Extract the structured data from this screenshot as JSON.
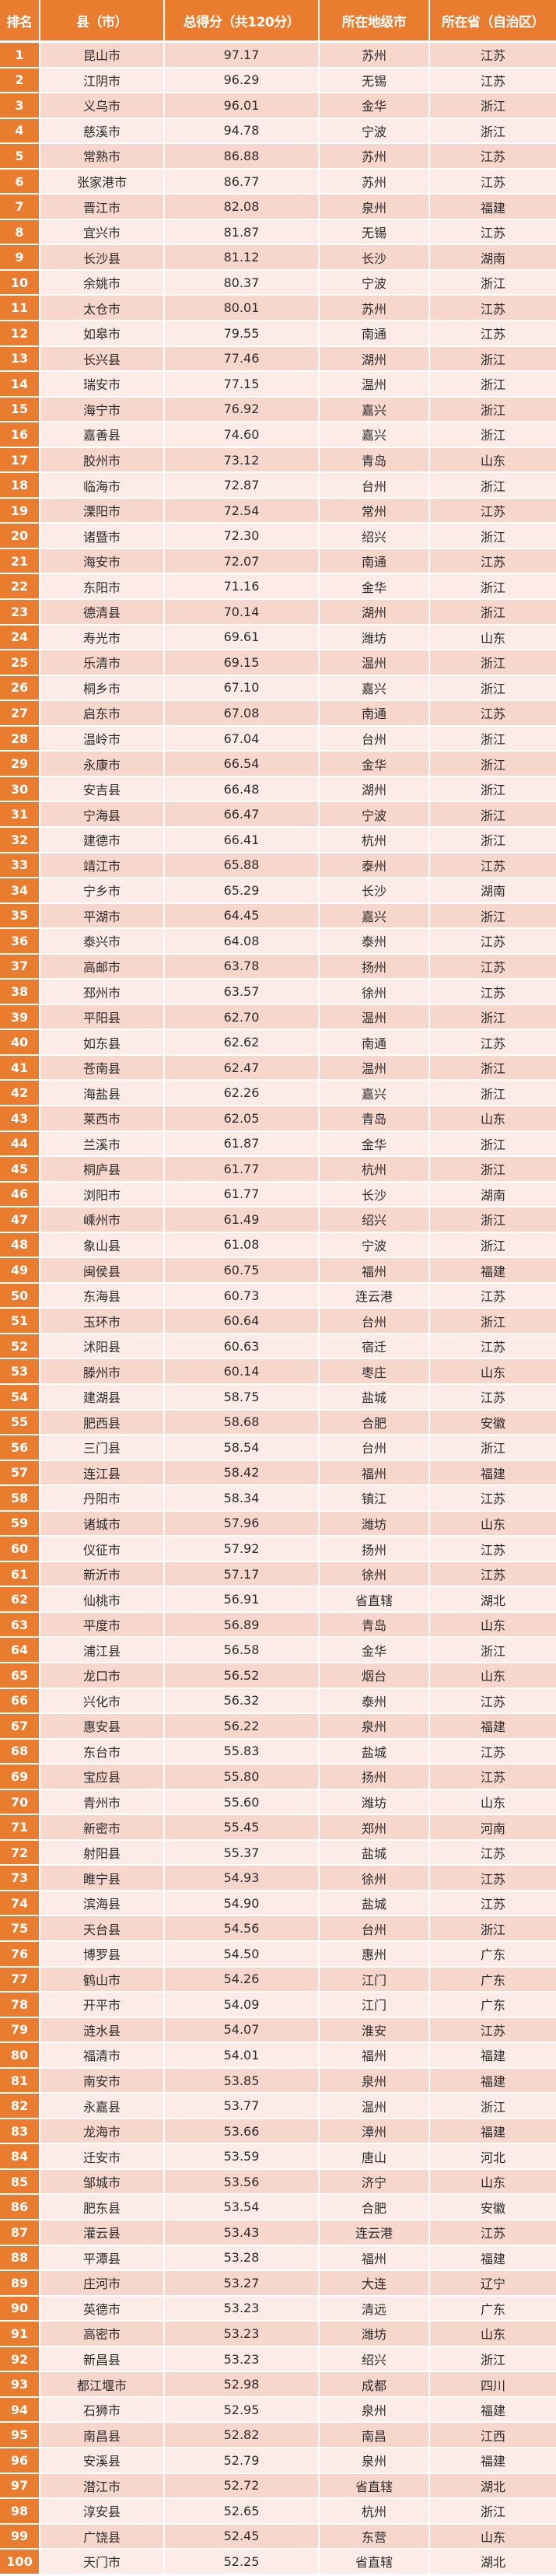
{
  "colors": {
    "header": "#ea7c2f",
    "rank_cell": "#ea7c2f",
    "row_odd": "#f7d6cc",
    "row_even": "#fcebe6"
  },
  "header": [
    "排名",
    "县（市）",
    "总得分（共120分）",
    "所在地级市",
    "所在省（自治区）"
  ],
  "rows": [
    [
      "1",
      "昆山市",
      "97.17",
      "苏州",
      "江苏"
    ],
    [
      "2",
      "江阴市",
      "96.29",
      "无锡",
      "江苏"
    ],
    [
      "3",
      "义乌市",
      "96.01",
      "金华",
      "浙江"
    ],
    [
      "4",
      "慈溪市",
      "94.78",
      "宁波",
      "浙江"
    ],
    [
      "5",
      "常熟市",
      "86.88",
      "苏州",
      "江苏"
    ],
    [
      "6",
      "张家港市",
      "86.77",
      "苏州",
      "江苏"
    ],
    [
      "7",
      "晋江市",
      "82.08",
      "泉州",
      "福建"
    ],
    [
      "8",
      "宜兴市",
      "81.87",
      "无锡",
      "江苏"
    ],
    [
      "9",
      "长沙县",
      "81.12",
      "长沙",
      "湖南"
    ],
    [
      "10",
      "余姚市",
      "80.37",
      "宁波",
      "浙江"
    ],
    [
      "11",
      "太仓市",
      "80.01",
      "苏州",
      "江苏"
    ],
    [
      "12",
      "如皋市",
      "79.55",
      "南通",
      "江苏"
    ],
    [
      "13",
      "长兴县",
      "77.46",
      "湖州",
      "浙江"
    ],
    [
      "14",
      "瑞安市",
      "77.15",
      "温州",
      "浙江"
    ],
    [
      "15",
      "海宁市",
      "76.92",
      "嘉兴",
      "浙江"
    ],
    [
      "16",
      "嘉善县",
      "74.60",
      "嘉兴",
      "浙江"
    ],
    [
      "17",
      "胶州市",
      "73.12",
      "青岛",
      "山东"
    ],
    [
      "18",
      "临海市",
      "72.87",
      "台州",
      "浙江"
    ],
    [
      "19",
      "溧阳市",
      "72.54",
      "常州",
      "江苏"
    ],
    [
      "20",
      "诸暨市",
      "72.30",
      "绍兴",
      "浙江"
    ],
    [
      "21",
      "海安市",
      "72.07",
      "南通",
      "江苏"
    ],
    [
      "22",
      "东阳市",
      "71.16",
      "金华",
      "浙江"
    ],
    [
      "23",
      "德清县",
      "70.14",
      "湖州",
      "浙江"
    ],
    [
      "24",
      "寿光市",
      "69.61",
      "潍坊",
      "山东"
    ],
    [
      "25",
      "乐清市",
      "69.15",
      "温州",
      "浙江"
    ],
    [
      "26",
      "桐乡市",
      "67.10",
      "嘉兴",
      "浙江"
    ],
    [
      "27",
      "启东市",
      "67.08",
      "南通",
      "江苏"
    ],
    [
      "28",
      "温岭市",
      "67.04",
      "台州",
      "浙江"
    ],
    [
      "29",
      "永康市",
      "66.54",
      "金华",
      "浙江"
    ],
    [
      "30",
      "安吉县",
      "66.48",
      "湖州",
      "浙江"
    ],
    [
      "31",
      "宁海县",
      "66.47",
      "宁波",
      "浙江"
    ],
    [
      "32",
      "建德市",
      "66.41",
      "杭州",
      "浙江"
    ],
    [
      "33",
      "靖江市",
      "65.88",
      "泰州",
      "江苏"
    ],
    [
      "34",
      "宁乡市",
      "65.29",
      "长沙",
      "湖南"
    ],
    [
      "35",
      "平湖市",
      "64.45",
      "嘉兴",
      "浙江"
    ],
    [
      "36",
      "泰兴市",
      "64.08",
      "泰州",
      "江苏"
    ],
    [
      "37",
      "高邮市",
      "63.78",
      "扬州",
      "江苏"
    ],
    [
      "38",
      "邳州市",
      "63.57",
      "徐州",
      "江苏"
    ],
    [
      "39",
      "平阳县",
      "62.70",
      "温州",
      "浙江"
    ],
    [
      "40",
      "如东县",
      "62.62",
      "南通",
      "江苏"
    ],
    [
      "41",
      "苍南县",
      "62.47",
      "温州",
      "浙江"
    ],
    [
      "42",
      "海盐县",
      "62.26",
      "嘉兴",
      "浙江"
    ],
    [
      "43",
      "莱西市",
      "62.05",
      "青岛",
      "山东"
    ],
    [
      "44",
      "兰溪市",
      "61.87",
      "金华",
      "浙江"
    ],
    [
      "45",
      "桐庐县",
      "61.77",
      "杭州",
      "浙江"
    ],
    [
      "46",
      "浏阳市",
      "61.77",
      "长沙",
      "湖南"
    ],
    [
      "47",
      "嵊州市",
      "61.49",
      "绍兴",
      "浙江"
    ],
    [
      "48",
      "象山县",
      "61.08",
      "宁波",
      "浙江"
    ],
    [
      "49",
      "闽侯县",
      "60.75",
      "福州",
      "福建"
    ],
    [
      "50",
      "东海县",
      "60.73",
      "连云港",
      "江苏"
    ],
    [
      "51",
      "玉环市",
      "60.64",
      "台州",
      "浙江"
    ],
    [
      "52",
      "沭阳县",
      "60.63",
      "宿迁",
      "江苏"
    ],
    [
      "53",
      "滕州市",
      "60.14",
      "枣庄",
      "山东"
    ],
    [
      "54",
      "建湖县",
      "58.75",
      "盐城",
      "江苏"
    ],
    [
      "55",
      "肥西县",
      "58.68",
      "合肥",
      "安徽"
    ],
    [
      "56",
      "三门县",
      "58.54",
      "台州",
      "浙江"
    ],
    [
      "57",
      "连江县",
      "58.42",
      "福州",
      "福建"
    ],
    [
      "58",
      "丹阳市",
      "58.34",
      "镇江",
      "江苏"
    ],
    [
      "59",
      "诸城市",
      "57.96",
      "潍坊",
      "山东"
    ],
    [
      "60",
      "仪征市",
      "57.92",
      "扬州",
      "江苏"
    ],
    [
      "61",
      "新沂市",
      "57.17",
      "徐州",
      "江苏"
    ],
    [
      "62",
      "仙桃市",
      "56.91",
      "省直辖",
      "湖北"
    ],
    [
      "63",
      "平度市",
      "56.89",
      "青岛",
      "山东"
    ],
    [
      "64",
      "浦江县",
      "56.58",
      "金华",
      "浙江"
    ],
    [
      "65",
      "龙口市",
      "56.52",
      "烟台",
      "山东"
    ],
    [
      "66",
      "兴化市",
      "56.32",
      "泰州",
      "江苏"
    ],
    [
      "67",
      "惠安县",
      "56.22",
      "泉州",
      "福建"
    ],
    [
      "68",
      "东台市",
      "55.83",
      "盐城",
      "江苏"
    ],
    [
      "69",
      "宝应县",
      "55.80",
      "扬州",
      "江苏"
    ],
    [
      "70",
      "青州市",
      "55.60",
      "潍坊",
      "山东"
    ],
    [
      "71",
      "新密市",
      "55.45",
      "郑州",
      "河南"
    ],
    [
      "72",
      "射阳县",
      "55.37",
      "盐城",
      "江苏"
    ],
    [
      "73",
      "睢宁县",
      "54.93",
      "徐州",
      "江苏"
    ],
    [
      "74",
      "滨海县",
      "54.90",
      "盐城",
      "江苏"
    ],
    [
      "75",
      "天台县",
      "54.56",
      "台州",
      "浙江"
    ],
    [
      "76",
      "博罗县",
      "54.50",
      "惠州",
      "广东"
    ],
    [
      "77",
      "鹤山市",
      "54.26",
      "江门",
      "广东"
    ],
    [
      "78",
      "开平市",
      "54.09",
      "江门",
      "广东"
    ],
    [
      "79",
      "涟水县",
      "54.07",
      "淮安",
      "江苏"
    ],
    [
      "80",
      "福清市",
      "54.01",
      "福州",
      "福建"
    ],
    [
      "81",
      "南安市",
      "53.85",
      "泉州",
      "福建"
    ],
    [
      "82",
      "永嘉县",
      "53.77",
      "温州",
      "浙江"
    ],
    [
      "83",
      "龙海市",
      "53.66",
      "漳州",
      "福建"
    ],
    [
      "84",
      "迁安市",
      "53.59",
      "唐山",
      "河北"
    ],
    [
      "85",
      "邹城市",
      "53.56",
      "济宁",
      "山东"
    ],
    [
      "86",
      "肥东县",
      "53.54",
      "合肥",
      "安徽"
    ],
    [
      "87",
      "灌云县",
      "53.43",
      "连云港",
      "江苏"
    ],
    [
      "88",
      "平潭县",
      "53.28",
      "福州",
      "福建"
    ],
    [
      "89",
      "庄河市",
      "53.27",
      "大连",
      "辽宁"
    ],
    [
      "90",
      "英德市",
      "53.23",
      "清远",
      "广东"
    ],
    [
      "91",
      "高密市",
      "53.23",
      "潍坊",
      "山东"
    ],
    [
      "92",
      "新昌县",
      "53.23",
      "绍兴",
      "浙江"
    ],
    [
      "93",
      "都江堰市",
      "52.98",
      "成都",
      "四川"
    ],
    [
      "94",
      "石狮市",
      "52.95",
      "泉州",
      "福建"
    ],
    [
      "95",
      "南昌县",
      "52.82",
      "南昌",
      "江西"
    ],
    [
      "96",
      "安溪县",
      "52.79",
      "泉州",
      "福建"
    ],
    [
      "97",
      "潜江市",
      "52.72",
      "省直辖",
      "湖北"
    ],
    [
      "98",
      "淳安县",
      "52.65",
      "杭州",
      "浙江"
    ],
    [
      "99",
      "广饶县",
      "52.45",
      "东营",
      "山东"
    ],
    [
      "100",
      "天门市",
      "52.25",
      "省直辖",
      "湖北"
    ]
  ]
}
